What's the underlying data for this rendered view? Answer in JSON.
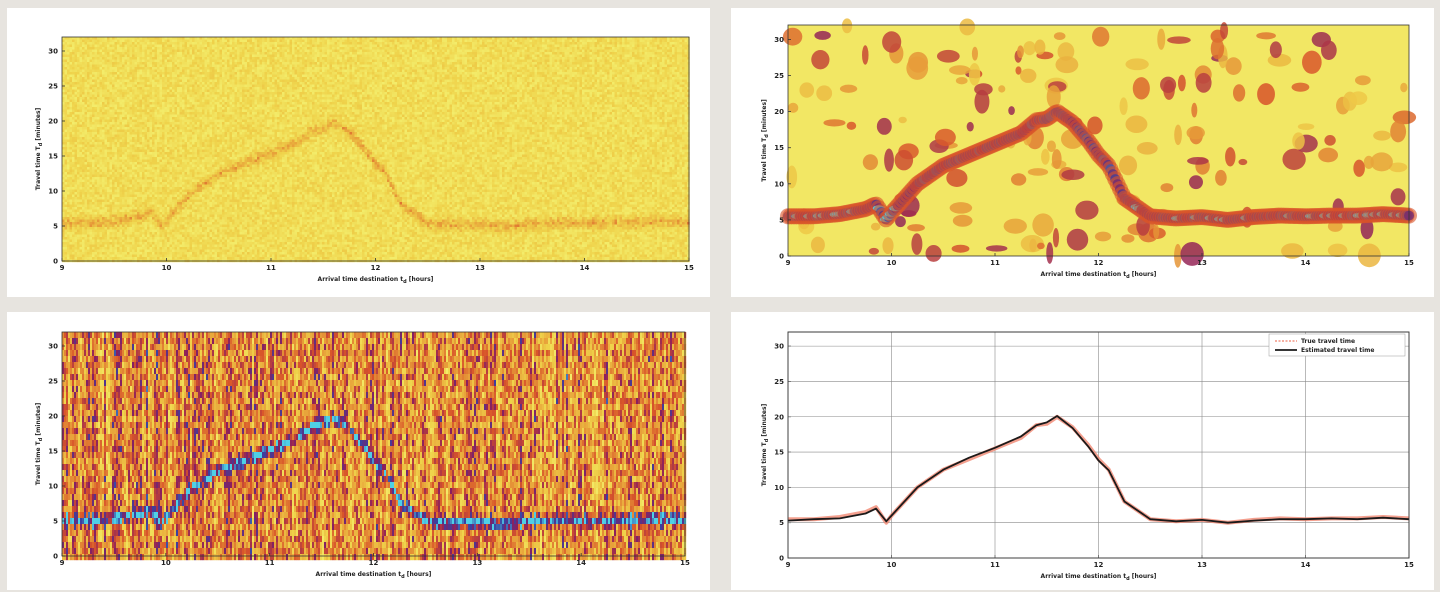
{
  "chart_data": [
    {
      "type": "heatmap",
      "panel": "top-left",
      "xlabel": "Arrival time destination t",
      "xlabel_sub": "d",
      "xlabel_unit": " [hours]",
      "ylabel": "Travel time T",
      "ylabel_sub": "d",
      "ylabel_unit": " [minutes]",
      "xlim": [
        9,
        15
      ],
      "ylim": [
        0,
        32
      ],
      "xticks": [
        9,
        10,
        11,
        12,
        13,
        14,
        15
      ],
      "xtick_labels": [
        "9",
        "10",
        "11",
        "12",
        "13",
        "14",
        "15"
      ],
      "yticks": [
        0,
        5,
        10,
        15,
        20,
        25,
        30
      ],
      "ytick_labels": [
        "0",
        "5",
        "10",
        "15",
        "20",
        "25",
        "30"
      ],
      "colormap": [
        "#f3ec6a",
        "#efd24a",
        "#e8a23a",
        "#d8542a",
        "#8a1f5e",
        "#3b3fa0",
        "#4fd0e6"
      ],
      "signal_strength": 0.22,
      "noise_level": 0.35,
      "vertical_streaks": 0.0,
      "smoothing": "none"
    },
    {
      "type": "heatmap",
      "panel": "top-right",
      "xlabel": "Arrival time destination t",
      "xlabel_sub": "d",
      "xlabel_unit": " [hours]",
      "ylabel": "Travel time T",
      "ylabel_sub": "d",
      "ylabel_unit": " [minutes]",
      "xlim": [
        9,
        15
      ],
      "ylim": [
        0,
        32
      ],
      "xticks": [
        9,
        10,
        11,
        12,
        13,
        14,
        15
      ],
      "xtick_labels": [
        "9",
        "10",
        "11",
        "12",
        "13",
        "14",
        "15"
      ],
      "yticks": [
        0,
        5,
        10,
        15,
        20,
        25,
        30
      ],
      "ytick_labels": [
        "0",
        "5",
        "10",
        "15",
        "20",
        "25",
        "30"
      ],
      "colormap": [
        "#f3ec6a",
        "#efd24a",
        "#e8a23a",
        "#d8542a",
        "#8a1f5e",
        "#3b3fa0",
        "#4fd0e6"
      ],
      "signal_strength": 1.0,
      "noise_level": 0.5,
      "vertical_streaks": 0.0,
      "smoothing": "blob"
    },
    {
      "type": "heatmap",
      "panel": "bottom-left",
      "xlabel": "Arrival time destination t",
      "xlabel_sub": "d",
      "xlabel_unit": " [hours]",
      "ylabel": "Travel time T",
      "ylabel_sub": "d",
      "ylabel_unit": " [minutes]",
      "xlim": [
        9,
        15
      ],
      "ylim": [
        0,
        32
      ],
      "xticks": [
        9,
        10,
        11,
        12,
        13,
        14,
        15
      ],
      "xtick_labels": [
        "9",
        "10",
        "11",
        "12",
        "13",
        "14",
        "15"
      ],
      "yticks": [
        0,
        5,
        10,
        15,
        20,
        25,
        30
      ],
      "ytick_labels": [
        "0",
        "5",
        "10",
        "15",
        "20",
        "25",
        "30"
      ],
      "colormap": [
        "#f3ec6a",
        "#efd24a",
        "#e8a23a",
        "#d8542a",
        "#8a1f5e",
        "#3b3fa0",
        "#4fd0e6"
      ],
      "signal_strength": 0.7,
      "noise_level": 0.55,
      "vertical_streaks": 0.6,
      "smoothing": "vertical"
    },
    {
      "type": "line",
      "panel": "bottom-right",
      "xlabel": "Arrival time destination t",
      "xlabel_sub": "d",
      "xlabel_unit": " [hours]",
      "ylabel": "Travel time T",
      "ylabel_sub": "d",
      "ylabel_unit": " [minutes]",
      "xlim": [
        9,
        15
      ],
      "ylim": [
        0,
        32
      ],
      "xticks": [
        9,
        10,
        11,
        12,
        13,
        14,
        15
      ],
      "xtick_labels": [
        "9",
        "10",
        "11",
        "12",
        "13",
        "14",
        "15"
      ],
      "yticks": [
        0,
        5,
        10,
        15,
        20,
        25,
        30
      ],
      "ytick_labels": [
        "0",
        "5",
        "10",
        "15",
        "20",
        "25",
        "30"
      ],
      "grid": true,
      "legend": "top-right",
      "series": [
        {
          "name": "True travel time",
          "color": "#f0806a",
          "x": [
            9.0,
            9.25,
            9.5,
            9.75,
            9.85,
            9.95,
            10.0,
            10.25,
            10.5,
            10.75,
            11.0,
            11.25,
            11.4,
            11.5,
            11.6,
            11.75,
            11.9,
            12.0,
            12.1,
            12.25,
            12.5,
            12.75,
            13.0,
            13.25,
            13.5,
            13.75,
            14.0,
            14.25,
            14.5,
            14.75,
            15.0
          ],
          "y": [
            5.5,
            5.5,
            5.8,
            6.5,
            7.2,
            5.0,
            6.0,
            10.0,
            12.5,
            14.0,
            15.5,
            17.0,
            18.8,
            19.0,
            20.0,
            18.5,
            16.0,
            14.0,
            12.5,
            8.0,
            5.5,
            5.2,
            5.4,
            5.0,
            5.4,
            5.6,
            5.5,
            5.6,
            5.6,
            5.8,
            5.6
          ]
        },
        {
          "name": "Estimated travel time",
          "color": "#1a1a1a",
          "x": [
            9.0,
            9.25,
            9.5,
            9.75,
            9.85,
            9.95,
            10.0,
            10.25,
            10.5,
            10.75,
            11.0,
            11.25,
            11.4,
            11.5,
            11.6,
            11.75,
            11.9,
            12.0,
            12.1,
            12.25,
            12.5,
            12.75,
            13.0,
            13.25,
            13.5,
            13.75,
            14.0,
            14.25,
            14.5,
            14.75,
            15.0
          ],
          "y": [
            5.3,
            5.5,
            5.6,
            6.3,
            7.0,
            5.2,
            6.0,
            10.0,
            12.5,
            14.2,
            15.6,
            17.2,
            18.8,
            19.2,
            20.1,
            18.4,
            15.8,
            13.8,
            12.4,
            8.0,
            5.5,
            5.2,
            5.4,
            5.0,
            5.3,
            5.5,
            5.5,
            5.6,
            5.5,
            5.7,
            5.5
          ]
        }
      ]
    }
  ]
}
